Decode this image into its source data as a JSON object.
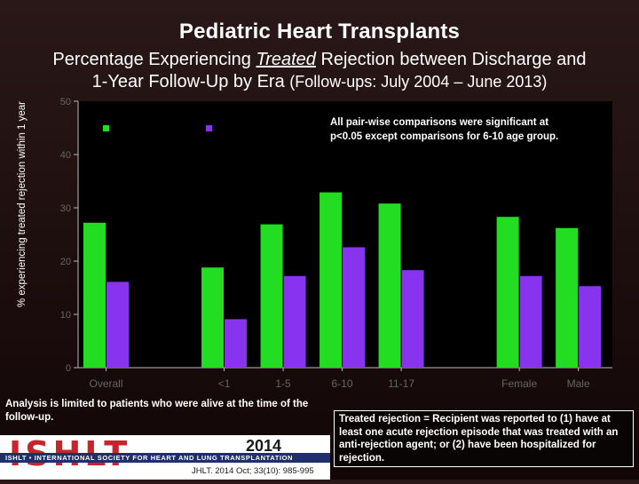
{
  "title": "Pediatric Heart Transplants",
  "subtitle": {
    "line1_pre": "Percentage Experiencing ",
    "line1_em": "Treated",
    "line1_post": " Rejection between Discharge and",
    "line2_main": "1-Year Follow-Up by Era ",
    "line2_small": "(Follow-ups: July 2004 – June 2013)"
  },
  "chart_data": {
    "type": "bar",
    "ylabel": "% experiencing treated rejection within 1 year",
    "xlabel": "",
    "ylim": [
      0,
      50
    ],
    "yticks": [
      0,
      10,
      20,
      30,
      40,
      50
    ],
    "categories": [
      "Overall",
      "",
      "<1",
      "1-5",
      "6-10",
      "11-17",
      "",
      "Female",
      "Male"
    ],
    "series": [
      {
        "name": "",
        "color": "#22dd22",
        "values": [
          27.2,
          null,
          18.8,
          26.9,
          32.9,
          30.8,
          null,
          28.3,
          26.2
        ]
      },
      {
        "name": "",
        "color": "#8833ee",
        "values": [
          16.1,
          null,
          9.1,
          17.2,
          22.6,
          18.3,
          null,
          17.2,
          15.3
        ]
      }
    ],
    "legend": "top-left",
    "annotation": "All pair-wise comparisons were significant at p<0.05 except comparisons for 6-10  age group."
  },
  "footnote": "Analysis is limited to patients who were alive at the time of the follow-up.",
  "logo": {
    "letters": "ISHLT",
    "year": "2014",
    "band": "ISHLT • INTERNATIONAL SOCIETY FOR HEART AND LUNG TRANSPLANTATION",
    "citation": "JHLT. 2014 Oct; 33(10): 985-995"
  },
  "definition": "Treated rejection = Recipient was reported to (1) have at least one acute rejection episode that was treated with an anti-rejection agent; or (2) have been hospitalized for rejection."
}
